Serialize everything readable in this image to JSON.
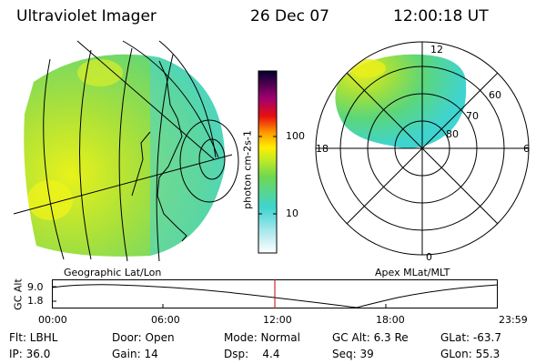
{
  "header": {
    "instrument": "Ultraviolet Imager",
    "date": "26 Dec 07",
    "time": "12:00:18 UT"
  },
  "colorbar": {
    "unit_label": "photon cm-2s-1",
    "ticks": [
      "100",
      "10"
    ],
    "colors": [
      "#ffffff",
      "#40e0d0",
      "#7cfc00",
      "#ffff00",
      "#ff8c00",
      "#e00000",
      "#a00060",
      "#000040"
    ]
  },
  "geo_panel": {
    "label": "Geographic Lat/Lon"
  },
  "polar_panel": {
    "label": "Apex MLat/MLT",
    "mlt_labels": {
      "top": "12",
      "left": "18",
      "right": "6",
      "bottom": "0"
    },
    "lat_labels": [
      "60",
      "70",
      "80"
    ]
  },
  "altitude_plot": {
    "ylabel": "GC Alt",
    "yticks": [
      "9.0",
      "1.8"
    ],
    "xticks": [
      "00:00",
      "06:00",
      "12:00",
      "18:00",
      "23:59"
    ],
    "current_time_fraction": 0.5,
    "marker_color": "#c00000"
  },
  "info": {
    "row1": {
      "filter": "Flt: LBHL",
      "door": "Door: Open",
      "mode": "Mode: Normal",
      "gc_alt": "GC Alt: 6.3 Re",
      "glat": "GLat: -63.7"
    },
    "row2": {
      "ip": "IP: 36.0",
      "gain": "Gain: 14",
      "dsp": "Dsp:    4.4",
      "seq": "Seq: 39",
      "glon": "GLon: 55.3"
    }
  }
}
